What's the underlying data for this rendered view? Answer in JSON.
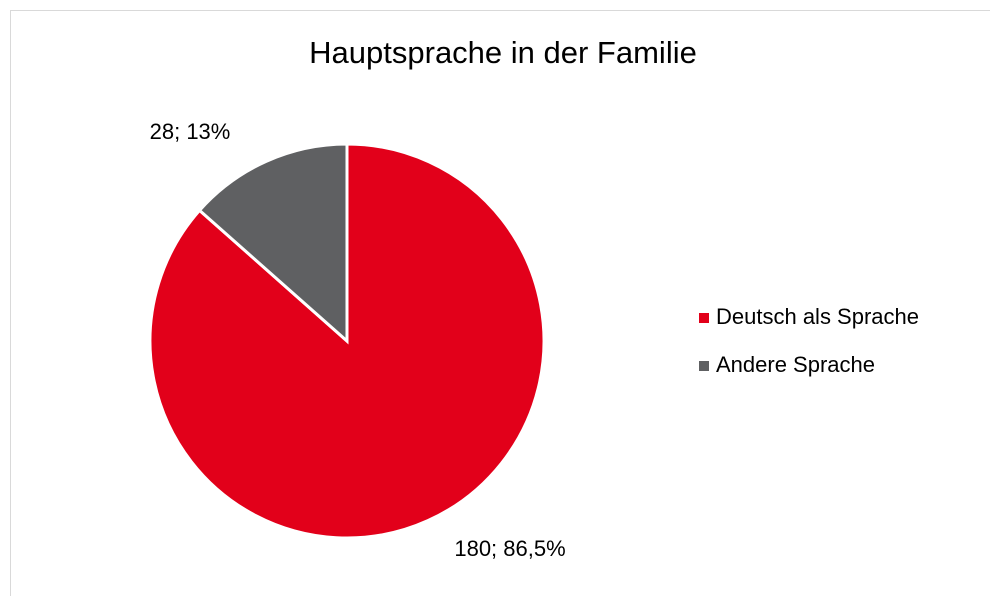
{
  "chart_data": {
    "type": "pie",
    "title": "Hauptsprache in der Familie",
    "categories": [
      "Deutsch als Sprache",
      "Andere Sprache"
    ],
    "values": [
      180,
      28
    ],
    "value_labels": [
      "180; 86,5%",
      "28; 13%"
    ],
    "colors": [
      "#e2001a",
      "#5f6062"
    ],
    "legend": "right"
  }
}
